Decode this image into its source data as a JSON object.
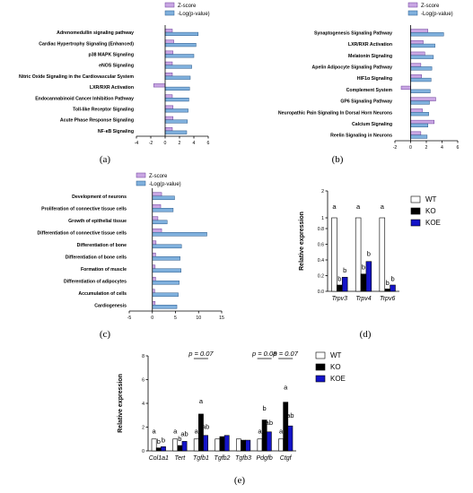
{
  "colors": {
    "zscore": "#c9a6e3",
    "zscore_edge": "#6a3d9a",
    "logp": "#7fb0dd",
    "logp_edge": "#2c5a8a",
    "wt": "#ffffff",
    "ko": "#000000",
    "koe": "#1414c8"
  },
  "letters": {
    "a": "(a)",
    "b": "(b)",
    "c": "(c)",
    "d": "(d)",
    "e": "(e)"
  },
  "chart_data": [
    {
      "id": "a",
      "type": "bar",
      "orientation": "horizontal",
      "legend": [
        "Z-score",
        "-Log(p-value)"
      ],
      "categories": [
        "Adrenomedullin signaling pathway",
        "Cardiac Hypertrophy Signaling (Enhanced)",
        "p38 MAPK Signaling",
        "eNOS Signaling",
        "Nitric Oxide Signaling in the Cardiovascular System",
        "LXR/RXR Activation",
        "Endocannabinoid Cancer Inhibition Pathway",
        "Toll-like Receptor Signaling",
        "Acute Phase Response Signaling",
        "NF-κB Signaling"
      ],
      "series": [
        {
          "name": "Z-score",
          "values": [
            1.0,
            1.2,
            1.1,
            1.0,
            1.0,
            -1.6,
            1.0,
            1.1,
            1.1,
            1.0
          ]
        },
        {
          "name": "-Log(p-value)",
          "values": [
            4.6,
            4.3,
            4.0,
            3.7,
            3.5,
            3.4,
            3.3,
            3.2,
            3.1,
            3.0
          ]
        }
      ],
      "xlim": [
        -4,
        6
      ],
      "xticks": [
        "-4",
        "-2",
        "0",
        "2",
        "4",
        "6"
      ]
    },
    {
      "id": "b",
      "type": "bar",
      "orientation": "horizontal",
      "legend": [
        "Z-score",
        "-Log(p-value)"
      ],
      "categories": [
        "Synaptogenesis Signaling Pathway",
        "LXR/RXR Activation",
        "Melatonin Signaling",
        "Apelin Adipocyte Signaling Pathway",
        "HIF1α Signaling",
        "Complement System",
        "GP6 Signaling Pathway",
        "Neuropathic Pain Signaling In Dorsal Horn Neurons",
        "Calcium Signaling",
        "Reelin Signaling in Neurons"
      ],
      "series": [
        {
          "name": "Z-score",
          "values": [
            2.2,
            1.6,
            1.8,
            1.3,
            1.4,
            -1.2,
            3.2,
            1.5,
            3.0,
            1.3
          ]
        },
        {
          "name": "-Log(p-value)",
          "values": [
            4.2,
            3.1,
            2.9,
            2.7,
            2.6,
            2.5,
            2.4,
            2.3,
            2.2,
            2.1
          ]
        }
      ],
      "xlim": [
        -2,
        6
      ],
      "xticks": [
        "-2",
        "0",
        "2",
        "4",
        "6"
      ]
    },
    {
      "id": "c",
      "type": "bar",
      "orientation": "horizontal",
      "legend": [
        "Z-score",
        "-Log(p-value)"
      ],
      "categories": [
        "Development of neurons",
        "Proliferation of connective tissue cells",
        "Growth of epithelial tissue",
        "Differentiation of connective tissue cells",
        "Differentiation of bone",
        "Differentiation of bone cells",
        "Formation of muscle",
        "Differentiation of adipocytes",
        "Accumulation of cells",
        "Cardiogenesis"
      ],
      "series": [
        {
          "name": "Z-score",
          "values": [
            2.0,
            1.8,
            1.2,
            2.0,
            0.8,
            0.7,
            0.6,
            0.7,
            0.5,
            0.6
          ]
        },
        {
          "name": "-Log(p-value)",
          "values": [
            4.8,
            4.5,
            3.2,
            11.8,
            6.3,
            6.0,
            6.2,
            5.8,
            5.6,
            5.3
          ]
        }
      ],
      "xlim": [
        -5,
        15
      ],
      "xticks": [
        "-5",
        "0",
        "5",
        "10",
        "15"
      ]
    },
    {
      "id": "d",
      "type": "bar",
      "ylabel": "Relative expression",
      "legend": [
        "WT",
        "KO",
        "KOE"
      ],
      "categories": [
        "Trpv3",
        "Trpv4",
        "Trpv6"
      ],
      "series": [
        {
          "name": "WT",
          "values": [
            1.0,
            1.0,
            1.0
          ],
          "letters": [
            "a",
            "a",
            "a"
          ]
        },
        {
          "name": "KO",
          "values": [
            0.08,
            0.22,
            0.03
          ],
          "letters": [
            "b",
            "b",
            "b"
          ]
        },
        {
          "name": "KOE",
          "values": [
            0.18,
            0.38,
            0.08
          ],
          "letters": [
            "b",
            "b",
            "b"
          ]
        }
      ],
      "yticks": [
        "0.0",
        "0.2",
        "0.4",
        "0.6",
        "0.8",
        "1",
        "2"
      ]
    },
    {
      "id": "e",
      "type": "bar",
      "ylabel": "Relative expression",
      "legend": [
        "WT",
        "KO",
        "KOE"
      ],
      "categories": [
        "Col1a1",
        "Tert",
        "Tgfb1",
        "Tgfb2",
        "Tgfb3",
        "Pdgfb",
        "Ctgf"
      ],
      "series": [
        {
          "name": "WT",
          "values": [
            1.0,
            1.0,
            1.0,
            1.0,
            1.0,
            1.0,
            1.0
          ],
          "letters": [
            "a",
            "a",
            "a",
            "",
            "",
            "a",
            "a"
          ]
        },
        {
          "name": "KO",
          "values": [
            0.25,
            0.45,
            3.1,
            1.2,
            0.9,
            2.6,
            4.1
          ],
          "letters": [
            "b",
            "b",
            "a",
            "",
            "",
            "b",
            "a"
          ]
        },
        {
          "name": "KOE",
          "values": [
            0.35,
            0.8,
            1.3,
            1.3,
            0.9,
            1.6,
            2.1
          ],
          "letters": [
            "b",
            "ab",
            "ab",
            "",
            "",
            "ab",
            "ab"
          ]
        }
      ],
      "ylim": [
        0,
        8
      ],
      "yticks": [
        "0",
        "2",
        "4",
        "6",
        "8"
      ],
      "pvalues": [
        {
          "label": "p = 0.07",
          "category": "Tgfb1"
        },
        {
          "label": "p = 0.08",
          "category": "Pdgfb"
        },
        {
          "label": "p = 0.07",
          "category": "Ctgf"
        }
      ]
    }
  ]
}
